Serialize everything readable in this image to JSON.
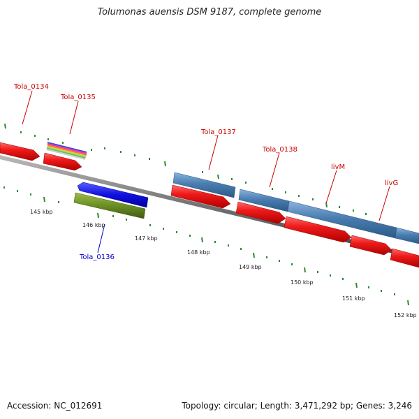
{
  "title": "Tolumonas auensis DSM 9187, complete genome",
  "accession": "Accession: NC_012691",
  "topology": "Topology: circular; Length: 3,471,292 bp; Genes: 3,246",
  "gene_labels": [
    "Tola_0134",
    "Tola_0135",
    "Tola_0137",
    "Tola_0138",
    "livM",
    "livG",
    "Tola_0136"
  ],
  "kbp_labels": [
    "145 kbp",
    "146 kbp",
    "147 kbp",
    "148 kbp",
    "149 kbp",
    "150 kbp",
    "151 kbp",
    "152 kbp"
  ],
  "colors": {
    "cds_red": "#e8141b",
    "cds_blue": "#4a7db0",
    "backbone": "#808080",
    "tick_green": "#2e8b2e",
    "label_red": "#cc0000",
    "label_blue": "#0000cc",
    "reverse_blue": "#1a10e0",
    "olive": "#6b8e23"
  }
}
